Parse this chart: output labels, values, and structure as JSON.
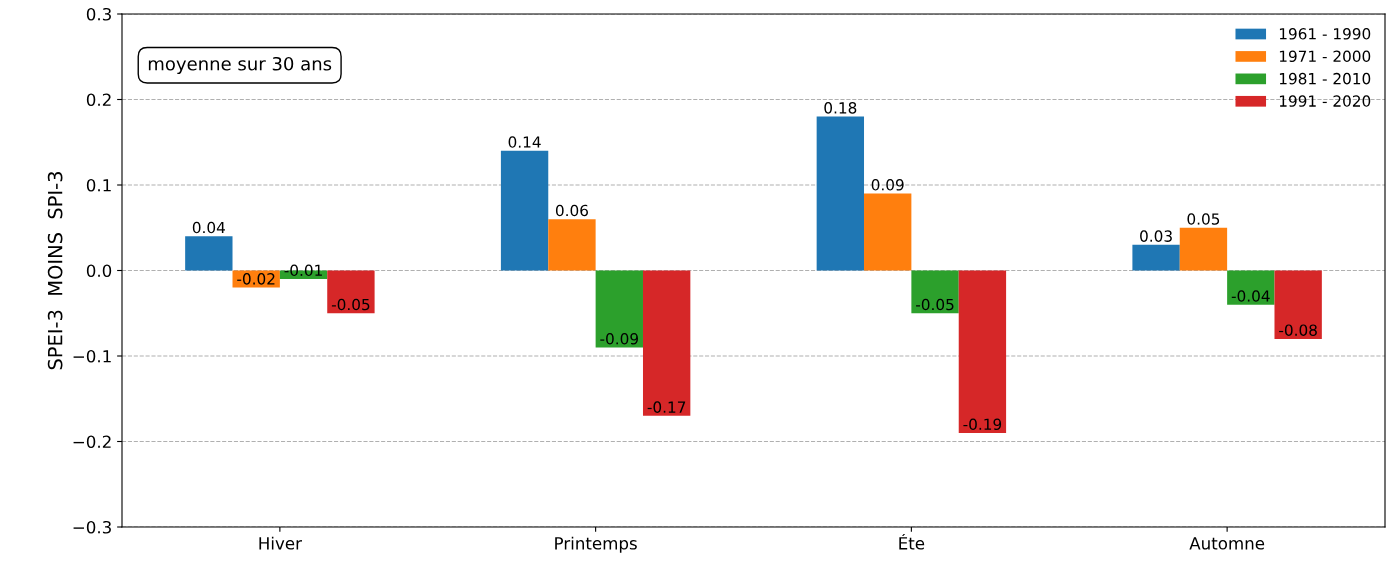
{
  "chart_data": {
    "type": "bar",
    "ylabel": "SPEI-3  MOINS  SPI-3",
    "categories": [
      "Hiver",
      "Printemps",
      "Éte",
      "Automne"
    ],
    "series": [
      {
        "name": "1961 - 1990",
        "color": "#1f77b4",
        "values": [
          0.04,
          0.14,
          0.18,
          0.03
        ]
      },
      {
        "name": "1971 - 2000",
        "color": "#ff7f0e",
        "values": [
          -0.02,
          0.06,
          0.09,
          0.05
        ]
      },
      {
        "name": "1981 - 2010",
        "color": "#2ca02c",
        "values": [
          -0.01,
          -0.09,
          -0.05,
          -0.04
        ]
      },
      {
        "name": "1991 - 2020",
        "color": "#d62728",
        "values": [
          -0.05,
          -0.17,
          -0.19,
          -0.08
        ]
      }
    ],
    "ylim": [
      -0.3,
      0.3
    ],
    "yticks": [
      {
        "value": -0.3,
        "label": "−0.3"
      },
      {
        "value": -0.2,
        "label": "−0.2"
      },
      {
        "value": -0.1,
        "label": "−0.1"
      },
      {
        "value": 0,
        "label": "0.0"
      },
      0.1,
      0.2,
      0.3
    ],
    "grid": "y",
    "legend": "top right",
    "data_labels": true,
    "annotations": [
      "moyenne sur 30 ans"
    ]
  }
}
